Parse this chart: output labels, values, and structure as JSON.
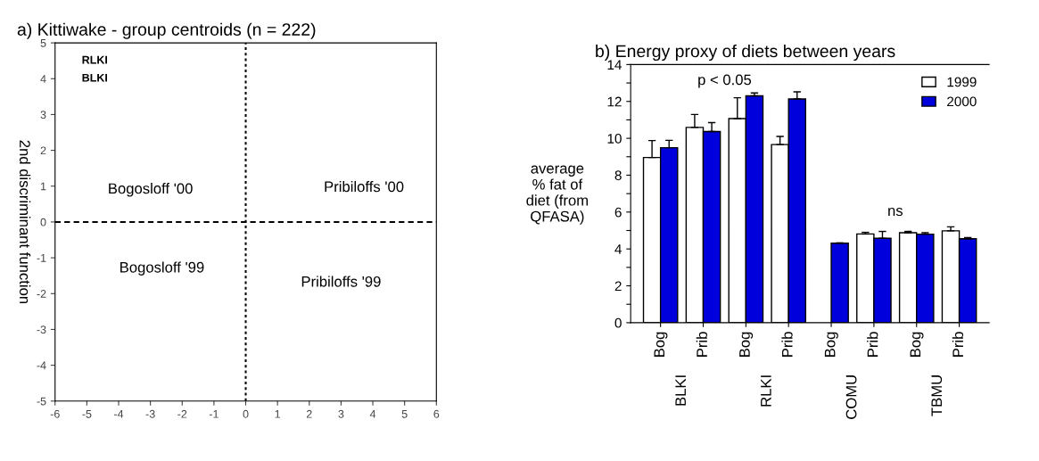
{
  "chart_data": [
    {
      "type": "scatter",
      "title": "a) Kittiwake - group centroids (n = 222)",
      "ylabel": "2nd discriminant function",
      "xlim": [
        -6,
        6
      ],
      "xticks": [
        -6,
        -5,
        -4,
        -3,
        -2,
        -1,
        0,
        1,
        2,
        3,
        4,
        5,
        6
      ],
      "ylim": [
        -5,
        5
      ],
      "yticks": [
        -5,
        -4,
        -3,
        -2,
        -1,
        0,
        1,
        2,
        3,
        4,
        5
      ],
      "grid": false,
      "ref_lines": [
        {
          "axis": "x",
          "value": 0,
          "color": "#000000",
          "line_style": "dotted"
        },
        {
          "axis": "y",
          "value": 0,
          "color": "#000000",
          "line_style": "dashed"
        }
      ],
      "annotations": [
        "RLKI",
        "BLKI",
        "Bogosloff '00",
        "Pribiloffs '00",
        "Bogosloff '99",
        "Pribiloffs '99"
      ]
    },
    {
      "type": "bar",
      "title": "b) Energy proxy of diets between years",
      "ylabel": "average\n% fat of\ndiet (from\nQFASA)",
      "categories": [
        "Bog",
        "Prib",
        "Bog",
        "Prib",
        "Bog",
        "Prib",
        "Bog",
        "Prib"
      ],
      "ylim": [
        0,
        14
      ],
      "yticks": [
        0,
        {
          "value": 1,
          "label": null
        },
        2,
        {
          "value": 3,
          "label": null
        },
        4,
        {
          "value": 5,
          "label": null
        },
        6,
        {
          "value": 7,
          "label": null
        },
        8,
        {
          "value": 9,
          "label": null
        },
        10,
        {
          "value": 11,
          "label": null
        },
        12,
        {
          "value": 13,
          "label": null
        },
        14
      ],
      "legend": "top right",
      "grid": false,
      "series": [
        {
          "name": "1999",
          "color": "#ffffff",
          "values": [
            8.96,
            10.59,
            11.07,
            9.66,
            null,
            4.81,
            4.88,
            4.98
          ],
          "errors": [
            [
              8.96,
              9.88
            ],
            [
              10.59,
              11.29
            ],
            [
              11.07,
              12.2
            ],
            [
              9.66,
              10.1
            ],
            null,
            [
              4.81,
              4.9
            ],
            [
              4.88,
              4.95
            ],
            [
              4.98,
              5.2
            ]
          ]
        },
        {
          "name": "2000",
          "color": "#0000dd",
          "values": [
            9.49,
            10.37,
            12.3,
            12.13,
            4.31,
            4.58,
            4.8,
            4.55
          ],
          "errors": [
            [
              9.49,
              9.89
            ],
            [
              10.37,
              10.85
            ],
            [
              12.3,
              12.46
            ],
            [
              12.13,
              12.52
            ],
            [
              4.31,
              4.33
            ],
            [
              4.58,
              4.95
            ],
            [
              4.8,
              4.88
            ],
            [
              4.55,
              4.62
            ]
          ]
        }
      ],
      "annotations": [
        "p < 0.05",
        "ns",
        "BLKI",
        "RLKI",
        "COMU",
        "TBMU"
      ]
    }
  ]
}
